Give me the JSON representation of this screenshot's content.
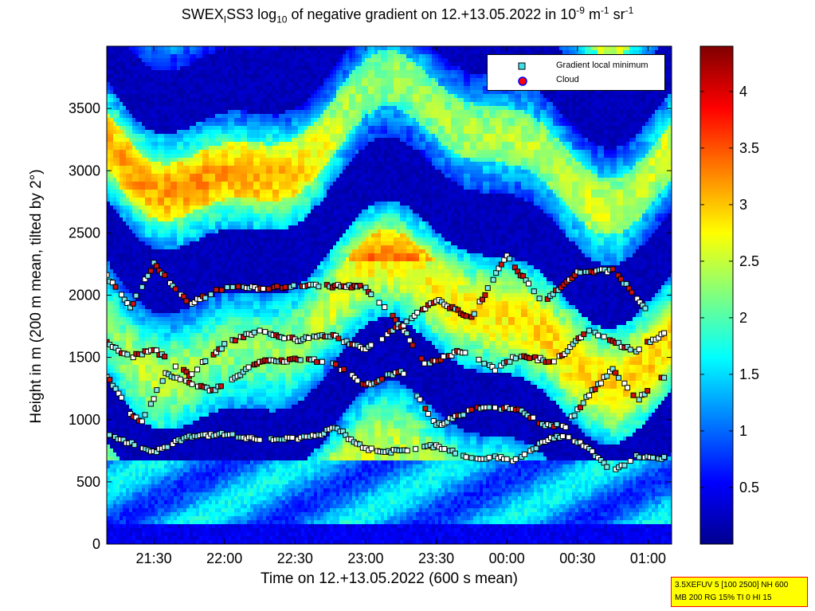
{
  "title": {
    "prefix": "SWEX",
    "sub1": "I",
    "mid": "SS3 log",
    "sub2": "10",
    "rest": " of negative gradient on 12.+13.05.2022 in 10",
    "exp1": "-9",
    "unit1": " m",
    "exp2": "-1",
    "unit2": " sr",
    "exp3": "-1"
  },
  "xlabel": "Time on 12.+13.05.2022 (600 s mean)",
  "ylabel": "Height in m (200 m mean, tilted by 2°)",
  "info_line1": "3.5XEFUV 5 [100 2500] NH 600",
  "info_line2": "MB 200 RG 15% TI 0 HI 15",
  "legend": {
    "placement": "top-right",
    "entries": [
      {
        "label": "Gradient local minimum",
        "marker": "square",
        "color": "#40e0e8"
      },
      {
        "label": "Cloud",
        "marker": "circle",
        "color": "#ff0000"
      }
    ]
  },
  "chart_data": {
    "type": "heatmap",
    "x_unit": "time of day",
    "x_range": [
      "21:10",
      "01:10"
    ],
    "xticks": [
      "21:30",
      "22:00",
      "22:30",
      "23:00",
      "23:30",
      "00:00",
      "00:30",
      "01:00"
    ],
    "ylim": [
      0,
      4000
    ],
    "yticks": [
      0,
      500,
      1000,
      1500,
      2000,
      2500,
      3000,
      3500
    ],
    "colorbar": {
      "range": [
        0,
        4.4
      ],
      "ticks": [
        0.5,
        1,
        1.5,
        2,
        2.5,
        3,
        3.5,
        4
      ],
      "colormap": "jet"
    },
    "layers": [
      {
        "name": "gradient local minimum track 1",
        "points": [
          [
            "21:10",
            880
          ],
          [
            "21:30",
            740
          ],
          [
            "21:45",
            870
          ],
          [
            "22:00",
            880
          ],
          [
            "22:15",
            840
          ],
          [
            "22:30",
            850
          ],
          [
            "22:40",
            880
          ],
          [
            "22:48",
            940
          ],
          [
            "22:55",
            810
          ],
          [
            "23:05",
            740
          ],
          [
            "23:20",
            760
          ],
          [
            "23:30",
            790
          ],
          [
            "23:45",
            690
          ],
          [
            "23:55",
            700
          ],
          [
            "00:05",
            670
          ],
          [
            "00:15",
            820
          ],
          [
            "00:25",
            880
          ],
          [
            "00:35",
            760
          ],
          [
            "00:45",
            590
          ],
          [
            "00:55",
            700
          ],
          [
            "01:08",
            690
          ]
        ]
      },
      {
        "name": "gradient local minimum track 2",
        "points": [
          [
            "21:10",
            1350
          ],
          [
            "21:20",
            1050
          ],
          [
            "21:25",
            980
          ],
          [
            "21:35",
            1370
          ],
          [
            "21:45",
            1290
          ],
          [
            "21:55",
            1230
          ],
          [
            "22:15",
            1470
          ],
          [
            "22:30",
            1480
          ],
          [
            "22:45",
            1470
          ],
          [
            "23:00",
            1270
          ],
          [
            "23:15",
            1400
          ],
          [
            "23:30",
            950
          ],
          [
            "23:45",
            1080
          ],
          [
            "23:55",
            1100
          ],
          [
            "00:05",
            1080
          ],
          [
            "00:15",
            960
          ],
          [
            "00:25",
            950
          ],
          [
            "00:35",
            1200
          ],
          [
            "00:45",
            1410
          ],
          [
            "00:55",
            1150
          ],
          [
            "01:08",
            1370
          ]
        ]
      },
      {
        "name": "gradient local minimum track 3",
        "points": [
          [
            "21:10",
            1620
          ],
          [
            "21:20",
            1500
          ],
          [
            "21:30",
            1560
          ],
          [
            "21:45",
            1360
          ],
          [
            "22:00",
            1600
          ],
          [
            "22:15",
            1720
          ],
          [
            "22:30",
            1640
          ],
          [
            "22:45",
            1680
          ],
          [
            "23:00",
            1560
          ],
          [
            "23:15",
            1760
          ],
          [
            "23:25",
            1440
          ],
          [
            "23:40",
            1550
          ],
          [
            "23:55",
            1400
          ],
          [
            "00:05",
            1520
          ],
          [
            "00:20",
            1460
          ],
          [
            "00:35",
            1720
          ],
          [
            "00:45",
            1620
          ],
          [
            "00:55",
            1560
          ],
          [
            "01:08",
            1710
          ]
        ]
      },
      {
        "name": "gradient local minimum track 4",
        "points": [
          [
            "21:10",
            2150
          ],
          [
            "21:20",
            1900
          ],
          [
            "21:30",
            2250
          ],
          [
            "21:45",
            1930
          ],
          [
            "22:00",
            2060
          ],
          [
            "22:20",
            2060
          ],
          [
            "22:40",
            2080
          ],
          [
            "23:00",
            2060
          ],
          [
            "23:15",
            1750
          ],
          [
            "23:30",
            1960
          ],
          [
            "23:45",
            1820
          ],
          [
            "00:00",
            2320
          ],
          [
            "00:15",
            1930
          ],
          [
            "00:30",
            2180
          ],
          [
            "00:45",
            2200
          ],
          [
            "01:00",
            1880
          ]
        ]
      }
    ],
    "notes": [
      "cloud markers overlaid on tracks near 750-2500 m"
    ]
  }
}
